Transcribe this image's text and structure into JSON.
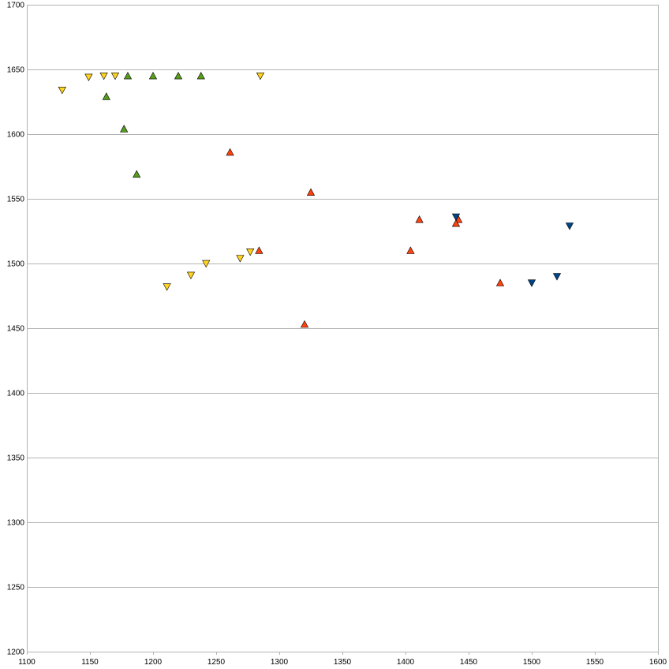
{
  "chart_data": {
    "type": "scatter",
    "title": "",
    "xlabel": "",
    "ylabel": "",
    "xlim": [
      1100,
      1600
    ],
    "ylim": [
      1200,
      1700
    ],
    "x_ticks": [
      1100,
      1150,
      1200,
      1250,
      1300,
      1350,
      1400,
      1450,
      1500,
      1550,
      1600
    ],
    "y_ticks": [
      1200,
      1250,
      1300,
      1350,
      1400,
      1450,
      1500,
      1550,
      1600,
      1650,
      1700
    ],
    "grid": {
      "horizontal": true,
      "vertical": false
    },
    "legend": "none",
    "series": [
      {
        "marker": "triangle-down",
        "color": "#ffd320",
        "points": [
          [
            1128,
            1634
          ],
          [
            1149,
            1644
          ],
          [
            1161,
            1645
          ],
          [
            1170,
            1645
          ],
          [
            1285,
            1645
          ],
          [
            1211,
            1482
          ],
          [
            1230,
            1491
          ],
          [
            1242,
            1500
          ],
          [
            1269,
            1504
          ],
          [
            1277,
            1509
          ]
        ]
      },
      {
        "marker": "triangle-up",
        "color": "#579d1c",
        "points": [
          [
            1180,
            1645
          ],
          [
            1200,
            1645
          ],
          [
            1220,
            1645
          ],
          [
            1238,
            1645
          ],
          [
            1163,
            1629
          ],
          [
            1177,
            1604
          ],
          [
            1187,
            1569
          ]
        ]
      },
      {
        "marker": "triangle-up",
        "color": "#ff420e",
        "points": [
          [
            1261,
            1586
          ],
          [
            1284,
            1510
          ],
          [
            1325,
            1555
          ],
          [
            1320,
            1453
          ],
          [
            1404,
            1510
          ],
          [
            1411,
            1534
          ],
          [
            1442,
            1534
          ],
          [
            1440,
            1531
          ],
          [
            1475,
            1485
          ]
        ]
      },
      {
        "marker": "triangle-down",
        "color": "#004586",
        "points": [
          [
            1440,
            1536
          ],
          [
            1500,
            1485
          ],
          [
            1520,
            1490
          ],
          [
            1530,
            1529
          ]
        ]
      }
    ]
  }
}
